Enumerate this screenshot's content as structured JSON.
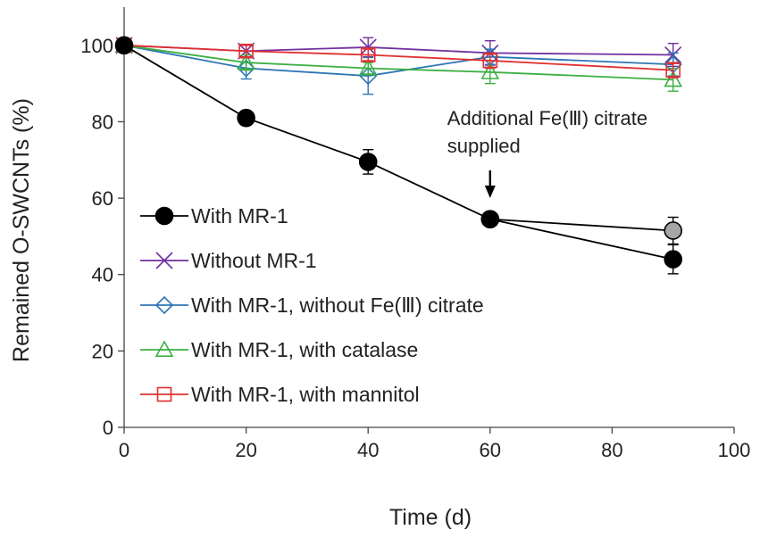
{
  "chart_data": {
    "type": "line",
    "xlabel": "Time (d)",
    "ylabel": "Remained O-SWCNTs (%)",
    "xlim": [
      0,
      100
    ],
    "ylim": [
      0,
      110
    ],
    "xticks": [
      0,
      20,
      40,
      60,
      80,
      100
    ],
    "yticks": [
      0,
      20,
      40,
      60,
      80,
      100
    ],
    "grid": false,
    "legend_position": "bottom-left",
    "series": [
      {
        "name": "Additional Fe(III) citrate supplied",
        "legend": false,
        "color": "#000000",
        "fill": "#a6a6a6",
        "marker": "circle",
        "x": [
          60,
          90
        ],
        "y": [
          54.5,
          51.5
        ],
        "err": [
          1.5,
          3.5
        ]
      },
      {
        "name": "With MR-1",
        "color": "#000000",
        "fill": "#000000",
        "marker": "circle",
        "x": [
          0,
          20,
          40,
          60,
          90
        ],
        "y": [
          100,
          81,
          69.5,
          54.5,
          44
        ],
        "err": [
          0.5,
          0.8,
          3.2,
          1.5,
          3.8
        ]
      },
      {
        "name": "Without MR-1",
        "color": "#7030a0",
        "fill": "none",
        "marker": "x",
        "x": [
          0,
          20,
          40,
          60,
          90
        ],
        "y": [
          100,
          98.5,
          99.5,
          98,
          97.5
        ],
        "err": [
          0.5,
          1.5,
          2.5,
          3.2,
          3
        ]
      },
      {
        "name": "With MR-1, without Fe(Ⅲ) citrate",
        "color": "#2e75b6",
        "fill": "none",
        "marker": "diamond",
        "x": [
          0,
          20,
          40,
          60,
          90
        ],
        "y": [
          100,
          94,
          92,
          97,
          95
        ],
        "err": [
          0.5,
          2.8,
          4.8,
          2,
          3
        ]
      },
      {
        "name": "With MR-1, with catalase",
        "color": "#3cb043",
        "fill": "none",
        "marker": "triangle",
        "x": [
          0,
          20,
          40,
          60,
          90
        ],
        "y": [
          100,
          95.5,
          94,
          93,
          91
        ],
        "err": [
          0.5,
          2,
          1.5,
          3,
          3
        ]
      },
      {
        "name": "With MR-1, with mannitol",
        "color": "#e03030",
        "fill": "none",
        "marker": "square",
        "x": [
          0,
          20,
          40,
          60,
          90
        ],
        "y": [
          100,
          98.5,
          97.5,
          96,
          93.5
        ],
        "err": [
          0.5,
          1.5,
          1.5,
          2,
          2
        ]
      }
    ],
    "annotations": [
      {
        "lines": [
          "Additional Fe(Ⅲ) citrate",
          "supplied"
        ],
        "arrow_to": {
          "x": 60,
          "y": 60
        }
      }
    ]
  }
}
